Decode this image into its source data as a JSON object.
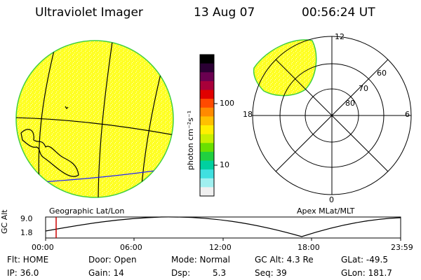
{
  "header": {
    "title": "Ultraviolet Imager",
    "date": "13 Aug 07",
    "time": "00:56:24 UT"
  },
  "left_panel": {
    "label": "Geographic Lat/Lon"
  },
  "colorbar": {
    "unit_label": "photon cm⁻²s⁻¹",
    "ticks": [
      "100",
      "10"
    ],
    "colors": [
      "#000000",
      "#2b0033",
      "#6a0050",
      "#a8003a",
      "#e00000",
      "#ff4a00",
      "#ff8a00",
      "#ffc000",
      "#fff000",
      "#c8f000",
      "#6ae000",
      "#20d040",
      "#00d0a0",
      "#40e0e0",
      "#a0f0f0",
      "#f0f0f0"
    ]
  },
  "right_panel": {
    "label": "Apex MLat/MLT",
    "mlt_labels": {
      "top": "12",
      "left": "18",
      "right": "6",
      "bottom": "0"
    },
    "lat_labels": [
      "60",
      "70",
      "80"
    ]
  },
  "timeline": {
    "ylabel": "GC Alt",
    "ymax": "9.0",
    "ymin": "1.8",
    "ticks": [
      "00:00",
      "06:00",
      "12:00",
      "18:00",
      "23:59"
    ],
    "cursor_color": "#cc0000"
  },
  "status": {
    "flt": "Flt: HOME",
    "ip": "IP: 36.0",
    "door": "Door: Open",
    "gain": "Gain: 14",
    "mode": "Mode: Normal",
    "dsp_label": "Dsp:",
    "dsp_value": "5.3",
    "gcalt": "GC Alt: 4.3 Re",
    "seq": "Seq: 39",
    "glat": "GLat: -49.5",
    "glon": "GLon: 181.7"
  }
}
